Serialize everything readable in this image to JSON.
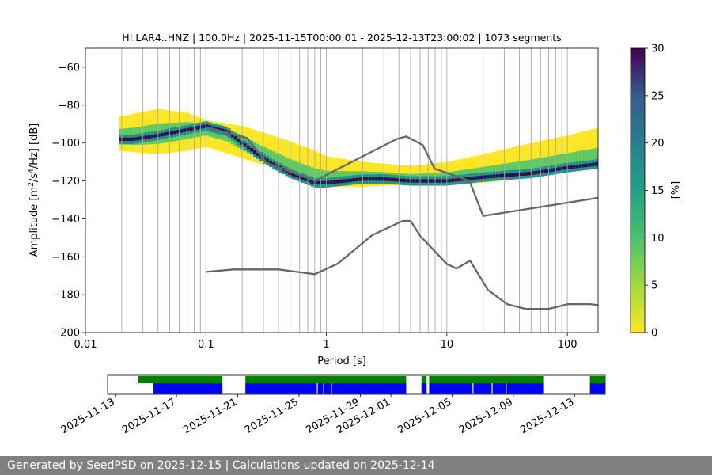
{
  "chart_data": [
    {
      "type": "heatmap",
      "title": "HI.LAR4..HNZ | 100.0Hz | 2025-11-15T00:00:01 - 2025-12-13T23:00:02 | 1073 segments",
      "xlabel": "Period [s]",
      "ylabel_main": "Amplitude [m",
      "ylabel_units": [
        "2",
        "/s",
        "4",
        "/Hz] [dB]"
      ],
      "xscale": "log",
      "xlim": [
        0.01,
        180
      ],
      "ylim": [
        -200,
        -50
      ],
      "x_ticks": [
        {
          "value": 0.01,
          "label": "0.01"
        },
        {
          "value": 0.1,
          "label": "0.1"
        },
        {
          "value": 1,
          "label": "1"
        },
        {
          "value": 10,
          "label": "10"
        },
        {
          "value": 100,
          "label": "100"
        }
      ],
      "y_ticks": [
        {
          "value": -60,
          "label": "−60"
        },
        {
          "value": -80,
          "label": "−80"
        },
        {
          "value": -100,
          "label": "−100"
        },
        {
          "value": -120,
          "label": "−120"
        },
        {
          "value": -140,
          "label": "−140"
        },
        {
          "value": -160,
          "label": "−160"
        },
        {
          "value": -180,
          "label": "−180"
        },
        {
          "value": -200,
          "label": "−200"
        }
      ],
      "grid_periods": [
        0.02,
        0.03,
        0.04,
        0.05,
        0.06,
        0.07,
        0.08,
        0.09,
        0.1,
        0.2,
        0.3,
        0.4,
        0.5,
        0.6,
        0.7,
        0.8,
        0.9,
        1,
        2,
        3,
        4,
        5,
        6,
        7,
        8,
        9,
        10,
        20,
        30,
        40,
        50,
        60,
        70,
        80,
        90,
        100
      ],
      "psd_mode": {
        "x": [
          0.019,
          0.025,
          0.04,
          0.07,
          0.1,
          0.15,
          0.2,
          0.3,
          0.5,
          0.8,
          1,
          2,
          3,
          5,
          10,
          20,
          50,
          100,
          180
        ],
        "y": [
          -98,
          -98,
          -96,
          -93,
          -91,
          -94,
          -100,
          -108,
          -116,
          -121,
          -121,
          -119,
          -119,
          -120,
          -120,
          -118,
          -116,
          -113,
          -111
        ]
      },
      "psd_upper": {
        "x": [
          0.019,
          0.04,
          0.07,
          0.1,
          0.2,
          0.4,
          0.8,
          1,
          2,
          5,
          10,
          20,
          50,
          100,
          180
        ],
        "y": [
          -86,
          -82,
          -84,
          -88,
          -91,
          -97,
          -104,
          -107,
          -110,
          -112,
          -110,
          -106,
          -100,
          -96,
          -92
        ]
      },
      "psd_lower": {
        "x": [
          0.019,
          0.04,
          0.07,
          0.1,
          0.2,
          0.4,
          0.8,
          1,
          2,
          5,
          10,
          20,
          50,
          100,
          180
        ],
        "y": [
          -104,
          -106,
          -104,
          -102,
          -108,
          -114,
          -121,
          -123,
          -123,
          -122,
          -122,
          -121,
          -118,
          -115,
          -113
        ]
      },
      "nhnm": {
        "x": [
          0.1,
          0.22,
          0.32,
          0.8,
          3.8,
          4.6,
          6.3,
          7.9,
          15.4,
          20,
          354.8
        ],
        "y": [
          -91.5,
          -97.4,
          -110.5,
          -120,
          -98,
          -96.5,
          -101,
          -113.5,
          -120,
          -138.5,
          -126
        ]
      },
      "nlnm": {
        "x": [
          0.1,
          0.17,
          0.4,
          0.8,
          1.24,
          2.4,
          4.3,
          5,
          6,
          10,
          12,
          15.6,
          21.9,
          31.6,
          45,
          70,
          101,
          154,
          180
        ],
        "y": [
          -168,
          -166.7,
          -166.7,
          -169.2,
          -163.7,
          -148.6,
          -141.1,
          -141.1,
          -149,
          -163.8,
          -166.2,
          -162.1,
          -177.5,
          -185,
          -187.5,
          -187.5,
          -185,
          -185,
          -185.5
        ]
      },
      "colorbar": {
        "label": "[%]",
        "range": [
          0,
          30
        ],
        "ticks": [
          0,
          5,
          10,
          15,
          20,
          25,
          30
        ],
        "colormap": "viridis_r"
      },
      "colors": {
        "mode_dark": "#2d0f4f",
        "high": "#21918c",
        "mid": "#5ec962",
        "low": "#fde725",
        "noise_models": "#666666"
      }
    },
    {
      "type": "timeline",
      "xlabel_dates": [
        "2025-11-13",
        "2025-11-17",
        "2025-11-21",
        "2025-11-25",
        "2025-11-29",
        "2025-12-01",
        "2025-12-05",
        "2025-12-09",
        "2025-12-13"
      ],
      "range_days_from_label_start": "2025-11-12T00:00 to 2025-12-14T12:00",
      "data_available": [
        [
          "2025-11-14T12:00",
          "2025-11-20T00:00"
        ],
        [
          "2025-11-21T12:00",
          "2025-12-02T00:00"
        ],
        [
          "2025-12-03T00:00",
          "2025-12-03T08:00"
        ],
        [
          "2025-12-03T12:00",
          "2025-12-11T00:00"
        ],
        [
          "2025-12-14T00:00",
          "2025-12-15T00:00"
        ]
      ],
      "psd_used": [
        [
          "2025-11-15T12:00",
          "2025-11-20T00:00"
        ],
        [
          "2025-11-21T12:00",
          "2025-12-02T00:00"
        ],
        [
          "2025-12-03T00:00",
          "2025-12-03T08:00"
        ],
        [
          "2025-12-03T12:00",
          "2025-12-11T00:00"
        ],
        [
          "2025-12-14T00:00",
          "2025-12-15T00:00"
        ]
      ],
      "gaps": [
        "2025-11-26T04:00",
        "2025-11-26T14:00",
        "2025-11-27T02:00",
        "2025-12-06T08:00",
        "2025-12-07T14:00",
        "2025-12-08T12:00"
      ],
      "colors": {
        "available": "#008000",
        "psd": "#0000ff"
      }
    }
  ],
  "footer": {
    "text": "Generated by SeedPSD on 2025-12-15 | Calculations updated on 2025-12-14"
  }
}
